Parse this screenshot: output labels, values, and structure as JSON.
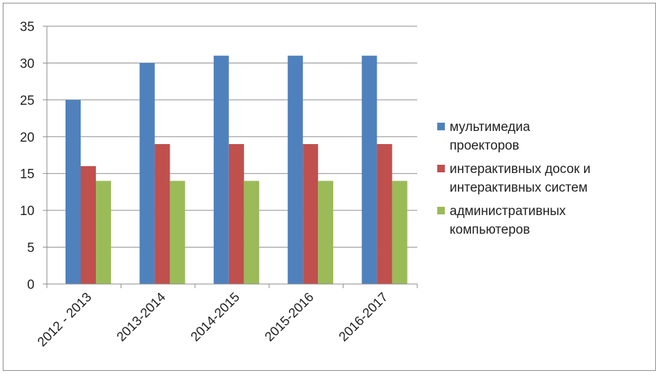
{
  "chart_data": {
    "type": "bar",
    "categories": [
      "2012 - 2013",
      "2013-2014",
      "2014-2015",
      "2015-2016",
      "2016-2017"
    ],
    "series": [
      {
        "name": "мультимедиа проекторов",
        "legend_lines": [
          "мультимедиа",
          "проекторов"
        ],
        "values": [
          25,
          30,
          31,
          31,
          31
        ],
        "color": "#4f81bd"
      },
      {
        "name": "интерактивных досок и интерактивных систем",
        "legend_lines": [
          "интерактивных досок и",
          "интерактивных систем"
        ],
        "values": [
          16,
          19,
          19,
          19,
          19
        ],
        "color": "#c0504d"
      },
      {
        "name": "административных компьютеров",
        "legend_lines": [
          "административных",
          "компьютеров"
        ],
        "values": [
          14,
          14,
          14,
          14,
          14
        ],
        "color": "#9bbb59"
      }
    ],
    "yticks": [
      0,
      5,
      10,
      15,
      20,
      25,
      30,
      35
    ],
    "ylim": [
      0,
      35
    ],
    "grid": true,
    "legend_position": "right"
  }
}
